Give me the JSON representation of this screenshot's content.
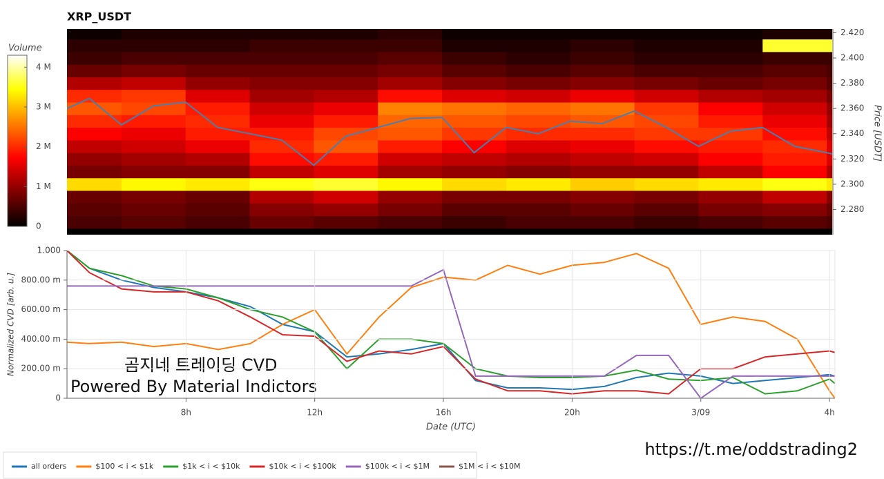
{
  "chart_data": [
    {
      "type": "heatmap",
      "title": "XRP_USDT",
      "x_edges": [
        4,
        6,
        8,
        10,
        12,
        14,
        16,
        18,
        20,
        22,
        24,
        26,
        28,
        30
      ],
      "y_edges": [
        2.265,
        2.275,
        2.285,
        2.295,
        2.305,
        2.315,
        2.325,
        2.335,
        2.345,
        2.355,
        2.365,
        2.375,
        2.385,
        2.395,
        2.405,
        2.415,
        2.425
      ],
      "values": [
        [
          500000,
          600000,
          500000,
          700000,
          600000,
          500000,
          400000,
          500000,
          500000,
          400000,
          500000,
          600000,
          500000
        ],
        [
          600000,
          700000,
          600000,
          900000,
          1000000,
          800000,
          600000,
          600000,
          700000,
          600000,
          800000,
          900000,
          700000
        ],
        [
          700000,
          800000,
          700000,
          1200000,
          1400000,
          1000000,
          800000,
          800000,
          900000,
          800000,
          1000000,
          1300000,
          900000
        ],
        [
          3200000,
          3400000,
          3300000,
          3500000,
          3600000,
          3400000,
          3200000,
          3300000,
          3100000,
          3200000,
          3300000,
          3500000,
          3300000
        ],
        [
          800000,
          900000,
          900000,
          1300000,
          1500000,
          1100000,
          1000000,
          900000,
          1000000,
          1000000,
          1300000,
          1700000,
          1200000
        ],
        [
          1000000,
          1100000,
          1200000,
          1800000,
          1900000,
          1400000,
          1300000,
          1200000,
          1300000,
          1400000,
          1700000,
          1900000,
          1500000
        ],
        [
          1300000,
          1400000,
          1600000,
          2000000,
          2300000,
          1900000,
          1700000,
          1500000,
          1600000,
          1800000,
          1900000,
          2000000,
          1500000
        ],
        [
          1700000,
          1600000,
          1900000,
          1900000,
          2200000,
          2300000,
          2100000,
          2000000,
          2000000,
          2100000,
          2100000,
          1800000,
          1300000
        ],
        [
          2000000,
          1900000,
          2000000,
          1600000,
          1900000,
          2400000,
          2300000,
          2200000,
          2300000,
          2200000,
          1900000,
          1600000,
          1100000
        ],
        [
          2300000,
          2200000,
          1900000,
          1400000,
          1600000,
          2600000,
          2500000,
          2400000,
          2500000,
          2100000,
          1700000,
          1400000,
          1000000
        ],
        [
          2000000,
          2100000,
          1500000,
          1100000,
          1200000,
          1800000,
          1500000,
          1400000,
          1600000,
          1400000,
          1200000,
          1100000,
          800000
        ],
        [
          1200000,
          1300000,
          1000000,
          900000,
          900000,
          1100000,
          900000,
          800000,
          900000,
          800000,
          700000,
          800000,
          600000
        ],
        [
          700000,
          800000,
          700000,
          700000,
          700000,
          800000,
          600000,
          500000,
          600000,
          500000,
          500000,
          600000,
          500000
        ],
        [
          400000,
          500000,
          500000,
          500000,
          500000,
          600000,
          400000,
          300000,
          400000,
          300000,
          300000,
          400000,
          400000
        ],
        [
          300000,
          300000,
          300000,
          400000,
          400000,
          400000,
          200000,
          200000,
          300000,
          200000,
          200000,
          3600000,
          3600000
        ],
        [
          100000,
          200000,
          200000,
          200000,
          200000,
          300000,
          100000,
          100000,
          100000,
          100000,
          100000,
          200000,
          200000
        ]
      ],
      "xlim": [
        4.3,
        28.17
      ],
      "ylim": [
        2.26,
        2.423
      ],
      "ylabel": "Price [USDT]",
      "yticks": [
        {
          "value": 2.28,
          "label": "2.280"
        },
        {
          "value": 2.3,
          "label": "2.300"
        },
        {
          "value": 2.32,
          "label": "2.320"
        },
        {
          "value": 2.34,
          "label": "2.340"
        },
        {
          "value": 2.36,
          "label": "2.360"
        },
        {
          "value": 2.38,
          "label": "2.380"
        },
        {
          "value": 2.4,
          "label": "2.400"
        },
        {
          "value": 2.42,
          "label": "2.420"
        }
      ],
      "colorbar": {
        "label": "Volume",
        "lim": [
          0,
          4300000
        ],
        "ticks": [
          0,
          {
            "value": 1000000,
            "label": "1 M"
          },
          {
            "value": 2000000,
            "label": "2 M"
          },
          {
            "value": 3000000,
            "label": "3 M"
          },
          {
            "value": 4000000,
            "label": "4 M"
          }
        ]
      },
      "price_line": {
        "color": "#4a7eb0",
        "x": [
          4.3,
          5,
          6,
          7,
          8,
          9,
          10,
          11,
          12,
          13,
          14,
          15,
          16,
          17,
          18,
          19,
          20,
          21,
          22,
          23,
          24,
          25,
          26,
          27,
          28,
          28.17
        ],
        "values": [
          2.36,
          2.368,
          2.347,
          2.362,
          2.365,
          2.345,
          2.34,
          2.335,
          2.315,
          2.338,
          2.345,
          2.352,
          2.353,
          2.325,
          2.345,
          2.34,
          2.35,
          2.348,
          2.358,
          2.345,
          2.33,
          2.342,
          2.345,
          2.33,
          2.325,
          2.324
        ]
      }
    },
    {
      "type": "line",
      "x": [
        4.3,
        5,
        6,
        7,
        8,
        9,
        10,
        11,
        12,
        13,
        14,
        15,
        16,
        17,
        18,
        19,
        20,
        21,
        22,
        23,
        24,
        25,
        26,
        27,
        28,
        28.17
      ],
      "series": [
        {
          "name": "all orders",
          "color": "#1f77b4",
          "values": [
            1.0,
            0.88,
            0.8,
            0.75,
            0.72,
            0.68,
            0.62,
            0.5,
            0.45,
            0.28,
            0.3,
            0.33,
            0.37,
            0.12,
            0.07,
            0.07,
            0.06,
            0.08,
            0.14,
            0.17,
            0.15,
            0.1,
            0.12,
            0.14,
            0.16,
            0.15
          ]
        },
        {
          "name": "$100 < i < $1k",
          "color": "#ff7f0e",
          "values": [
            0.38,
            0.37,
            0.38,
            0.35,
            0.37,
            0.33,
            0.37,
            0.5,
            0.6,
            0.3,
            0.55,
            0.75,
            0.82,
            0.8,
            0.9,
            0.84,
            0.9,
            0.92,
            0.98,
            0.88,
            0.5,
            0.55,
            0.52,
            0.4,
            0.05,
            0.0
          ]
        },
        {
          "name": "$1k < i < $10k",
          "color": "#2ca02c",
          "values": [
            1.0,
            0.88,
            0.83,
            0.76,
            0.74,
            0.68,
            0.6,
            0.55,
            0.45,
            0.2,
            0.4,
            0.4,
            0.37,
            0.2,
            0.15,
            0.14,
            0.14,
            0.15,
            0.19,
            0.13,
            0.12,
            0.14,
            0.03,
            0.05,
            0.13,
            0.1
          ]
        },
        {
          "name": "$10k < i < $100k",
          "color": "#d62728",
          "values": [
            1.0,
            0.85,
            0.74,
            0.72,
            0.72,
            0.66,
            0.55,
            0.43,
            0.42,
            0.25,
            0.32,
            0.3,
            0.35,
            0.13,
            0.05,
            0.05,
            0.03,
            0.05,
            0.05,
            0.03,
            0.2,
            0.2,
            0.28,
            0.3,
            0.32,
            0.31
          ]
        },
        {
          "name": "$100k < i < $1M",
          "color": "#9467bd",
          "values": [
            0.76,
            0.76,
            0.76,
            0.76,
            0.76,
            0.76,
            0.76,
            0.76,
            0.76,
            0.76,
            0.76,
            0.76,
            0.87,
            0.15,
            0.15,
            0.15,
            0.15,
            0.15,
            0.29,
            0.29,
            0.0,
            0.15,
            0.15,
            0.15,
            0.15,
            0.15
          ]
        },
        {
          "name": "$1M < i < $10M",
          "color": "#8c564b",
          "values": [
            null,
            null,
            null,
            null,
            null,
            null,
            null,
            null,
            null,
            null,
            null,
            null,
            null,
            null,
            null,
            null,
            null,
            null,
            null,
            null,
            null,
            null,
            null,
            null,
            null,
            null
          ]
        }
      ],
      "xlim": [
        4.3,
        28.17
      ],
      "xticks": [
        {
          "value": 8,
          "label": "8h"
        },
        {
          "value": 12,
          "label": "12h"
        },
        {
          "value": 16,
          "label": "16h"
        },
        {
          "value": 20,
          "label": "20h"
        },
        {
          "value": 24,
          "label": "3/09"
        },
        {
          "value": 28,
          "label": "4h"
        }
      ],
      "xlabel": "Date (UTC)",
      "ylim": [
        0,
        1
      ],
      "yticks": [
        0,
        {
          "value": 0.2,
          "label": "200.00 m"
        },
        {
          "value": 0.4,
          "label": "400.00 m"
        },
        {
          "value": 0.6,
          "label": "600.00 m"
        },
        {
          "value": 0.8,
          "label": "800.00 m"
        },
        {
          "value": 1,
          "label": "1.000"
        }
      ],
      "ylabel": "Normalized CVD [arb. u.]",
      "grid": true,
      "annotations": [
        "곰지네 트레이딩 CVD",
        "Powered By Material Indictors"
      ]
    }
  ],
  "footer_url": "https://t.me/oddstrading2"
}
